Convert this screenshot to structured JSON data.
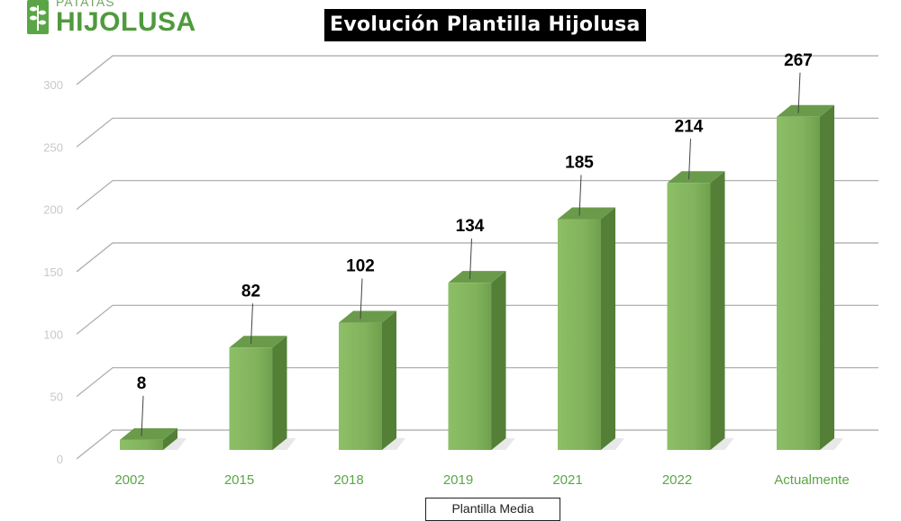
{
  "brand": {
    "top": "PATATAS",
    "main": "HIJOLUSA"
  },
  "chart_data": {
    "type": "bar",
    "title": "Evolución Plantilla Hijolusa",
    "categories": [
      "2002",
      "2015",
      "2018",
      "2019",
      "2021",
      "2022",
      "Actualmente"
    ],
    "series": [
      {
        "name": "Plantilla Media",
        "values": [
          8,
          82,
          102,
          134,
          185,
          214,
          267
        ]
      }
    ],
    "ylim": [
      0,
      300
    ],
    "yticks": [
      0,
      50,
      100,
      150,
      200,
      250,
      300
    ],
    "grid": true,
    "legend_position": "bottom",
    "three_d": true,
    "colors": {
      "bar_front": "#82b35d",
      "bar_side": "#537f37",
      "bar_top": "#6a9b4a",
      "category_label": "#5aa646",
      "tick_label": "#c8c8c8",
      "grid": "#a8a8a8",
      "value_label": "#000000"
    }
  }
}
